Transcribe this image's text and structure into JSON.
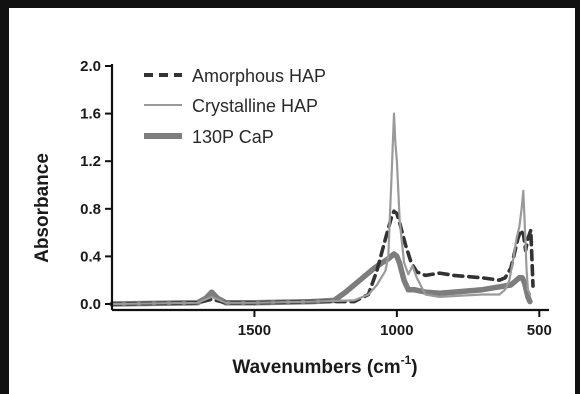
{
  "chart_data": {
    "type": "line",
    "xlabel": "Wavenumbers (cm",
    "xlabel_sup": "-1",
    "xlabel_suffix": ")",
    "ylabel": "Absorbance",
    "xlim": [
      2000,
      480
    ],
    "ylim": [
      0,
      2.0
    ],
    "x_reversed": true,
    "x_ticks": [
      1500,
      1000,
      500
    ],
    "y_ticks": [
      0.0,
      0.4,
      0.8,
      1.2,
      1.6,
      2.0
    ],
    "y_tick_labels": [
      "0.0",
      "0.4",
      "0.8",
      "1.2",
      "1.6",
      "2.0"
    ],
    "x_tick_labels": [
      "1500",
      "1000",
      "500"
    ],
    "legend_position": "top-left",
    "series": [
      {
        "name": "Amorphous HAP",
        "style": "dashed",
        "color": "#333333",
        "x": [
          2000,
          1700,
          1650,
          1600,
          1500,
          1300,
          1150,
          1100,
          1070,
          1040,
          1020,
          1010,
          1000,
          990,
          970,
          950,
          930,
          900,
          850,
          800,
          700,
          640,
          620,
          600,
          590,
          575,
          565,
          555,
          548,
          540,
          530,
          522
        ],
        "y": [
          0.0,
          0.01,
          0.04,
          0.01,
          0.01,
          0.02,
          0.02,
          0.08,
          0.28,
          0.55,
          0.72,
          0.78,
          0.76,
          0.68,
          0.5,
          0.35,
          0.27,
          0.24,
          0.26,
          0.24,
          0.22,
          0.2,
          0.22,
          0.3,
          0.4,
          0.55,
          0.62,
          0.58,
          0.45,
          0.55,
          0.62,
          0.15
        ]
      },
      {
        "name": "Crystalline HAP",
        "style": "solid-thin",
        "color": "#9a9a9a",
        "x": [
          2000,
          1700,
          1650,
          1600,
          1500,
          1300,
          1150,
          1100,
          1070,
          1040,
          1030,
          1025,
          1020,
          1015,
          1010,
          1005,
          1000,
          990,
          975,
          960,
          945,
          930,
          900,
          850,
          700,
          640,
          620,
          605,
          590,
          580,
          570,
          562,
          556,
          550,
          545,
          540,
          532
        ],
        "y": [
          0.0,
          0.01,
          0.06,
          0.01,
          0.01,
          0.02,
          0.03,
          0.08,
          0.16,
          0.28,
          0.4,
          0.7,
          1.0,
          1.3,
          1.6,
          1.35,
          1.2,
          0.7,
          0.35,
          0.25,
          0.32,
          0.22,
          0.08,
          0.06,
          0.08,
          0.08,
          0.12,
          0.2,
          0.4,
          0.55,
          0.65,
          0.8,
          0.95,
          0.6,
          0.3,
          0.12,
          0.08
        ]
      },
      {
        "name": "130P CaP",
        "style": "solid-thick",
        "color": "#7d7d7d",
        "x": [
          2000,
          1700,
          1670,
          1650,
          1630,
          1600,
          1500,
          1300,
          1220,
          1180,
          1120,
          1080,
          1050,
          1030,
          1020,
          1010,
          1000,
          990,
          975,
          960,
          940,
          900,
          850,
          800,
          700,
          650,
          600,
          580,
          570,
          560,
          552,
          546,
          540,
          533
        ],
        "y": [
          0.0,
          0.01,
          0.05,
          0.1,
          0.05,
          0.01,
          0.01,
          0.02,
          0.03,
          0.1,
          0.22,
          0.3,
          0.35,
          0.38,
          0.4,
          0.42,
          0.4,
          0.34,
          0.2,
          0.12,
          0.12,
          0.1,
          0.09,
          0.1,
          0.12,
          0.14,
          0.16,
          0.2,
          0.22,
          0.22,
          0.18,
          0.12,
          0.06,
          0.02
        ]
      }
    ]
  }
}
